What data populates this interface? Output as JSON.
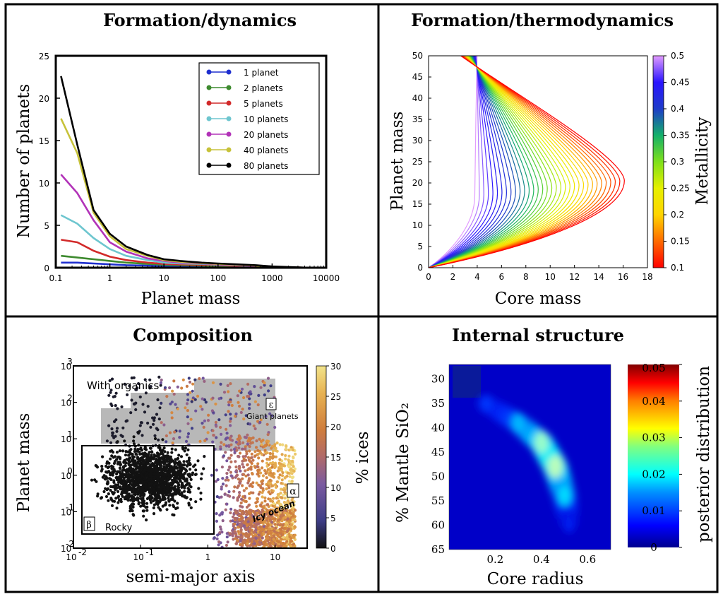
{
  "panels": {
    "p1": {
      "title": "Formation/dynamics",
      "xlabel": "Planet mass",
      "ylabel": "Number of planets",
      "xticks": [
        "0.1",
        "1",
        "10",
        "100",
        "1000",
        "10000"
      ],
      "yticks": [
        "0",
        "5",
        "10",
        "15",
        "20",
        "25"
      ],
      "legend": [
        "1 planet",
        "2 planets",
        "5 planets",
        "10 planets",
        "20 planets",
        "40 planets",
        "80 planets"
      ]
    },
    "p2": {
      "title": "Formation/thermodynamics",
      "xlabel": "Core mass",
      "ylabel": "Planet mass",
      "cbar_label": "Metallicity",
      "xticks": [
        "0",
        "2",
        "4",
        "6",
        "8",
        "10",
        "12",
        "14",
        "16",
        "18"
      ],
      "yticks": [
        "0",
        "5",
        "10",
        "15",
        "20",
        "25",
        "30",
        "35",
        "40",
        "45",
        "50"
      ],
      "cbar_ticks": [
        "0.1",
        "0.15",
        "0.2",
        "0.25",
        "0.3",
        "0.35",
        "0.4",
        "0.45",
        "0.5"
      ]
    },
    "p3": {
      "title": "Composition",
      "xlabel": "semi-major axis",
      "ylabel": "Planet mass",
      "cbar_label": "% ices",
      "cbar_ticks": [
        "0",
        "5",
        "10",
        "15",
        "20",
        "25",
        "30"
      ],
      "xticks_base": [
        "10",
        "10",
        "1",
        "10"
      ],
      "xticks_exp": [
        "-2",
        "-1",
        "",
        ""
      ],
      "yticks_exp": [
        "-2",
        "-1",
        "0",
        "1",
        "2",
        "3"
      ],
      "ann_organics": "With organics",
      "ann_giant": "Giant planets",
      "ann_epsilon": "ε",
      "ann_alpha": "α",
      "ann_beta": "β",
      "ann_rocky": "Rocky",
      "ann_icy": "Icy ocean"
    },
    "p4": {
      "title": "Internal structure",
      "xlabel": "Core radius",
      "ylabel": "% Mantle SiO₂",
      "cbar_label": "posterior distribution",
      "xticks": [
        "0.2",
        "0.4",
        "0.6"
      ],
      "yticks": [
        "30",
        "35",
        "40",
        "45",
        "50",
        "55",
        "60",
        "65"
      ],
      "cbar_ticks": [
        "0",
        "0.01",
        "0.02",
        "0.03",
        "0.04",
        "0.05"
      ]
    }
  },
  "chart_data": [
    {
      "type": "line",
      "title": "Formation/dynamics",
      "xlabel": "Planet mass",
      "ylabel": "Number of planets",
      "xscale": "log",
      "xlim": [
        0.1,
        10000
      ],
      "ylim": [
        0,
        25
      ],
      "legend_position": "top-right",
      "x": [
        0.125,
        0.25,
        0.5,
        1,
        2,
        5,
        10,
        20,
        50,
        100,
        500,
        1000,
        5000
      ],
      "series": [
        {
          "name": "1 planet",
          "color": "#1f2fcf",
          "values": [
            0.6,
            0.6,
            0.5,
            0.4,
            0.3,
            0.25,
            0.2,
            0.15,
            0.1,
            0.1,
            0.05,
            0.05,
            0.0
          ]
        },
        {
          "name": "2 planets",
          "color": "#3d8a2e",
          "values": [
            1.4,
            1.2,
            1.0,
            0.8,
            0.6,
            0.45,
            0.35,
            0.3,
            0.25,
            0.2,
            0.1,
            0.05,
            0.0
          ]
        },
        {
          "name": "5 planets",
          "color": "#d22a2a",
          "values": [
            3.3,
            3.0,
            2.0,
            1.3,
            0.9,
            0.6,
            0.45,
            0.4,
            0.35,
            0.3,
            0.15,
            0.1,
            0.0
          ]
        },
        {
          "name": "10 planets",
          "color": "#6ec6cf",
          "values": [
            6.2,
            5.2,
            3.5,
            2.2,
            1.4,
            0.9,
            0.6,
            0.5,
            0.45,
            0.35,
            0.2,
            0.1,
            0.0
          ]
        },
        {
          "name": "20 planets",
          "color": "#b233b8",
          "values": [
            11.0,
            8.8,
            5.6,
            3.0,
            1.9,
            1.1,
            0.8,
            0.6,
            0.5,
            0.4,
            0.2,
            0.1,
            0.0
          ]
        },
        {
          "name": "40 planets",
          "color": "#c7c23a",
          "values": [
            17.6,
            13.5,
            6.5,
            3.7,
            2.2,
            1.4,
            0.9,
            0.7,
            0.55,
            0.45,
            0.25,
            0.1,
            0.0
          ]
        },
        {
          "name": "80 planets",
          "color": "#000000",
          "values": [
            22.6,
            14.5,
            6.8,
            4.0,
            2.5,
            1.5,
            1.0,
            0.8,
            0.6,
            0.5,
            0.3,
            0.15,
            0.0
          ]
        }
      ]
    },
    {
      "type": "line",
      "title": "Formation/thermodynamics",
      "xlabel": "Core mass",
      "ylabel": "Planet mass",
      "xlim": [
        0,
        18
      ],
      "ylim": [
        0,
        50
      ],
      "colorbar": {
        "label": "Metallicity",
        "range": [
          0.1,
          0.5
        ]
      },
      "curve_family": {
        "count": 34,
        "metallicity_range": [
          0.1,
          0.5
        ],
        "max_core_mass_range": [
          16.1,
          3.8
        ],
        "planet_mass_at_max_range": [
          20.5,
          17
        ],
        "core_mass_at_50_range": [
          1.7,
          4.0
        ]
      }
    },
    {
      "type": "scatter",
      "title": "Composition",
      "xlabel": "semi-major axis",
      "ylabel": "Planet mass",
      "xscale": "log",
      "yscale": "log",
      "xlim": [
        0.01,
        30
      ],
      "ylim": [
        0.01,
        1000
      ],
      "colorbar": {
        "label": "% ices",
        "range": [
          0,
          30
        ]
      },
      "regions": [
        {
          "label": "With organics",
          "x": [
            0.025,
            9
          ],
          "y": [
            8,
            900
          ]
        },
        {
          "label": "Rocky",
          "marker": "β",
          "x": [
            0.013,
            1.1
          ],
          "y": [
            0.025,
            5
          ]
        },
        {
          "label": "Giant planets",
          "marker": "ε"
        },
        {
          "label": "Icy ocean",
          "marker": "α"
        }
      ]
    },
    {
      "type": "heatmap",
      "title": "Internal structure",
      "xlabel": "Core radius",
      "ylabel": "% Mantle SiO₂",
      "xlim": [
        0,
        0.7
      ],
      "ylim": [
        65,
        27
      ],
      "colorbar": {
        "label": "posterior distribution",
        "range": [
          0,
          0.05
        ]
      },
      "peak_ridge": [
        {
          "x": 0.16,
          "y": 35,
          "value": 0.006
        },
        {
          "x": 0.3,
          "y": 39,
          "value": 0.012
        },
        {
          "x": 0.4,
          "y": 43,
          "value": 0.019
        },
        {
          "x": 0.46,
          "y": 48,
          "value": 0.022
        },
        {
          "x": 0.5,
          "y": 54,
          "value": 0.014
        },
        {
          "x": 0.52,
          "y": 60,
          "value": 0.004
        }
      ]
    }
  ]
}
